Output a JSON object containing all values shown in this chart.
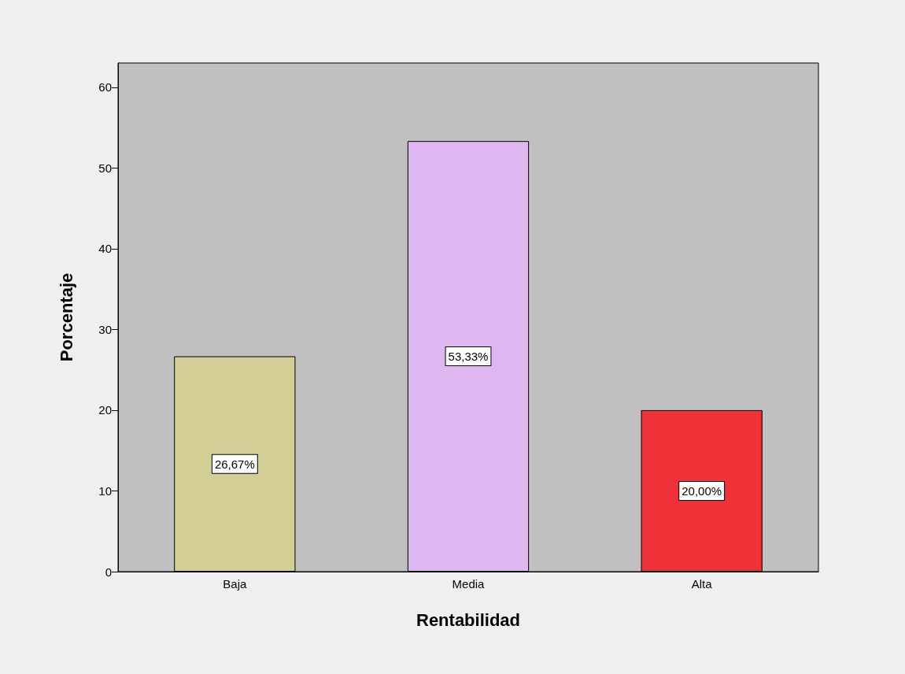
{
  "chart_data": {
    "type": "bar",
    "xlabel": "Rentabilidad",
    "ylabel": "Porcentaje",
    "categories": [
      "Baja",
      "Media",
      "Alta"
    ],
    "values": [
      26.67,
      53.33,
      20.0
    ],
    "colors": [
      "#d3cd96",
      "#dfb7f0",
      "#ee3238"
    ],
    "value_labels": [
      "26,67%",
      "53,33%",
      "20,00%"
    ],
    "ylim": [
      0,
      63
    ],
    "yticks": [
      0,
      10,
      20,
      30,
      40,
      50,
      60
    ],
    "grid": false
  }
}
